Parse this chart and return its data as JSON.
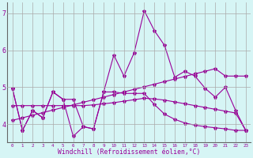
{
  "xlabel": "Windchill (Refroidissement éolien,°C)",
  "background_color": "#d6f5f5",
  "line_color": "#990099",
  "grid_color": "#aaaaaa",
  "xlim": [
    -0.5,
    23.5
  ],
  "ylim": [
    3.5,
    7.3
  ],
  "x_ticks": [
    0,
    1,
    2,
    3,
    4,
    5,
    6,
    7,
    8,
    9,
    10,
    11,
    12,
    13,
    14,
    15,
    16,
    17,
    18,
    19,
    20,
    21,
    22,
    23
  ],
  "y_ticks": [
    4,
    5,
    6,
    7
  ],
  "series": [
    [
      4.97,
      3.83,
      4.37,
      4.17,
      4.87,
      4.67,
      4.67,
      3.93,
      3.87,
      4.87,
      5.87,
      5.3,
      5.93,
      7.07,
      6.53,
      6.13,
      5.27,
      5.43,
      5.3,
      4.97,
      4.73,
      5.0,
      4.37,
      3.83
    ],
    [
      4.97,
      3.83,
      4.37,
      4.17,
      4.87,
      4.67,
      3.67,
      3.93,
      3.87,
      4.87,
      4.87,
      4.83,
      4.83,
      4.83,
      4.53,
      4.27,
      4.13,
      4.03,
      3.97,
      3.93,
      3.9,
      3.87,
      3.83,
      3.83
    ],
    [
      4.1,
      4.17,
      4.24,
      4.31,
      4.38,
      4.45,
      4.52,
      4.59,
      4.66,
      4.73,
      4.8,
      4.87,
      4.94,
      5.01,
      5.08,
      5.15,
      5.22,
      5.29,
      5.36,
      5.43,
      5.5,
      5.3,
      5.3,
      5.3
    ],
    [
      4.5,
      4.5,
      4.5,
      4.5,
      4.5,
      4.5,
      4.5,
      4.5,
      4.52,
      4.55,
      4.58,
      4.62,
      4.66,
      4.7,
      4.68,
      4.65,
      4.6,
      4.55,
      4.5,
      4.45,
      4.4,
      4.35,
      4.3,
      3.83
    ]
  ],
  "x_data": [
    0,
    1,
    2,
    3,
    4,
    5,
    6,
    7,
    8,
    9,
    10,
    11,
    12,
    13,
    14,
    15,
    16,
    17,
    18,
    19,
    20,
    21,
    22,
    23
  ]
}
